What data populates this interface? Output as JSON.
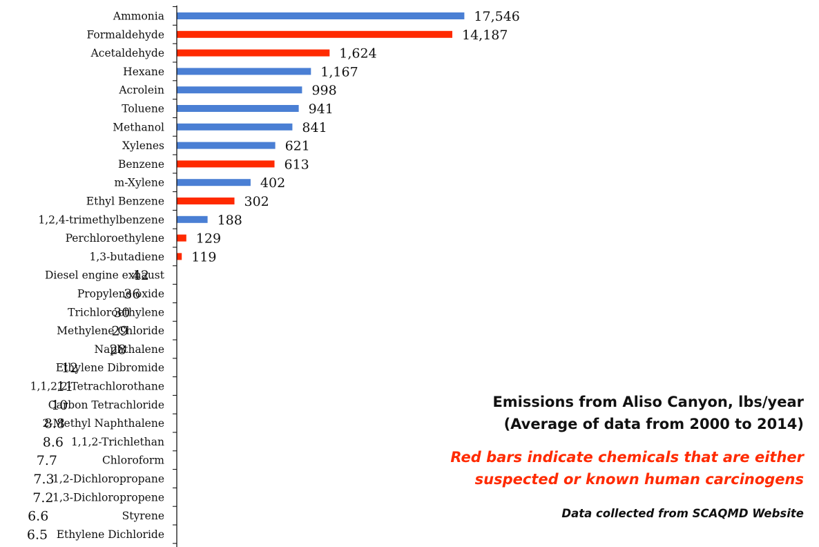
{
  "chart_data": {
    "type": "bar",
    "orientation": "horizontal",
    "categories": [
      "Ammonia",
      "Formaldehyde",
      "Acetaldehyde",
      "Hexane",
      "Acrolein",
      "Toluene",
      "Methanol",
      "Xylenes",
      "Benzene",
      "m-Xylene",
      "Ethyl Benzene",
      "1,2,4-trimethylbenzene",
      "Perchloroethylene",
      "1,3-butadiene",
      "Diesel engine exhaust",
      "Propylene oxide",
      "Trichloroethylene",
      "Methylene Chloride",
      "Naphthalene",
      "Ethylene Dibromide",
      "1,1,2,2-Tetrachlorothane",
      "Carbon Tetrachloride",
      "2-Methyl Naphthalene",
      "1,1,2-Trichlethan",
      "Chloroform",
      "1,2-Dichloropropane",
      "1,3-Dichloropropene",
      "Styrene",
      "Ethylene Dichloride"
    ],
    "values": [
      17546,
      14187,
      1624,
      1167,
      998,
      941,
      841,
      621,
      613,
      402,
      302,
      188,
      129,
      119,
      42,
      36,
      30,
      29,
      28,
      12,
      11,
      10,
      8.8,
      8.6,
      7.7,
      7.3,
      7.2,
      6.6,
      6.5
    ],
    "value_labels": [
      "17,546",
      "14,187",
      "1,624",
      "1,167",
      "998",
      "941",
      "841",
      "621",
      "613",
      "402",
      "302",
      "188",
      "129",
      "119",
      "42",
      "36",
      "30",
      "29",
      "28",
      "12",
      "11",
      "10",
      "8.8",
      "8.6",
      "7.7",
      "7.3",
      "7.2",
      "6.6",
      "6.5"
    ],
    "carcinogen": [
      false,
      true,
      true,
      false,
      false,
      false,
      false,
      false,
      true,
      false,
      true,
      false,
      true,
      true,
      false,
      true,
      true,
      true,
      false,
      true,
      false,
      true,
      false,
      false,
      false,
      false,
      true,
      false,
      false
    ],
    "xscale": "log",
    "xlim": [
      1,
      20000
    ],
    "colors": {
      "carcinogen": "#ff2a00",
      "other": "#4a7fd4",
      "axis": "#000000"
    },
    "title": "Emissions from Aliso Canyon, lbs/year",
    "subtitle": "(Average of data from 2000 to 2014)",
    "note": "Red bars indicate chemicals that are either suspected or known human carcinogens",
    "source": "Data collected from SCAQMD Website"
  },
  "notes": {
    "title": "Emissions from Aliso Canyon, lbs/year",
    "subtitle": "(Average of data from 2000 to 2014)",
    "red_line1": "Red bars indicate chemicals that are either",
    "red_line2": "suspected or known human carcinogens",
    "source": "Data collected from SCAQMD Website"
  }
}
